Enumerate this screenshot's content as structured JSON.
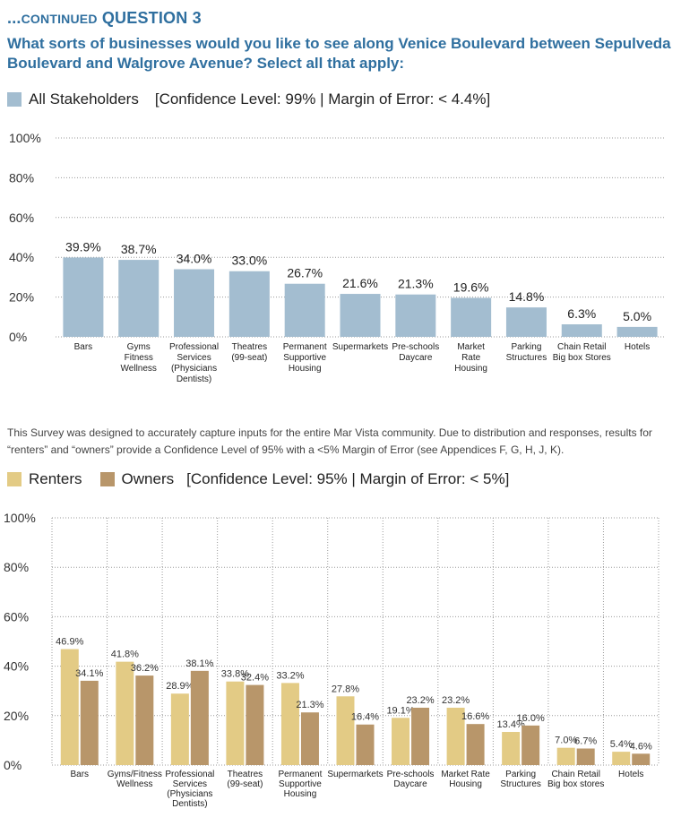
{
  "header": {
    "continued_prefix": "...",
    "continued_small": "CONTINUED",
    "continued_question": "QUESTION 3",
    "question": "What sorts of businesses would you like to see along Venice Boulevard between Sepulveda Boulevard and Walgrove Avenue? Select all that apply:"
  },
  "legend1": {
    "label": "All Stakeholders",
    "confidence": "[Confidence Level: 99%  |  Margin of Error: < 4.4%]"
  },
  "note": "This Survey was designed to accurately capture inputs for the entire Mar Vista community. Due to distribution and responses, results for “renters” and “owners” provide a Confidence Level of 95% with a <5% Margin of Error (see Appendices F, G, H, J, K).",
  "legend2": {
    "renters": "Renters",
    "owners": "Owners",
    "confidence": "[Confidence Level: 95%  |  Margin of Error: < 5%]"
  },
  "colors": {
    "stakeholders": "#a3bdd0",
    "renters": "#e3cb85",
    "owners": "#b8966a",
    "title": "#2f6f9f"
  },
  "chart_data": [
    {
      "type": "bar",
      "categories": [
        [
          "Bars"
        ],
        [
          "Gyms",
          "Fitness",
          "Wellness"
        ],
        [
          "Professional",
          "Services",
          "(Physicians",
          "Dentists)"
        ],
        [
          "Theatres",
          "(99-seat)"
        ],
        [
          "Permanent",
          "Supportive",
          "Housing"
        ],
        [
          "Supermarkets"
        ],
        [
          "Pre-schools",
          "Daycare"
        ],
        [
          "Market",
          "Rate",
          "Housing"
        ],
        [
          "Parking",
          "Structures"
        ],
        [
          "Chain Retail",
          "Big box Stores"
        ],
        [
          "Hotels"
        ]
      ],
      "series": [
        {
          "name": "All Stakeholders",
          "values": [
            39.9,
            38.7,
            34.0,
            33.0,
            26.7,
            21.6,
            21.3,
            19.6,
            14.8,
            6.3,
            5.0
          ]
        }
      ],
      "value_labels": [
        "39.9%",
        "38.7%",
        "34.0%",
        "33.0%",
        "26.7%",
        "21.6%",
        "21.3%",
        "19.6%",
        "14.8%",
        "6.3%",
        "5.0%"
      ],
      "yticks": [
        "0%",
        "20%",
        "40%",
        "60%",
        "80%",
        "100%"
      ],
      "ylim": [
        0,
        100
      ],
      "grid": "horizontal dotted"
    },
    {
      "type": "bar",
      "categories": [
        [
          "Bars"
        ],
        [
          "Gyms/Fitness",
          "Wellness"
        ],
        [
          "Professional",
          "Services",
          "(Physicians",
          "Dentists)"
        ],
        [
          "Theatres",
          "(99-seat)"
        ],
        [
          "Permanent",
          "Supportive",
          "Housing"
        ],
        [
          "Supermarkets"
        ],
        [
          "Pre-schools",
          "Daycare"
        ],
        [
          "Market Rate",
          "Housing"
        ],
        [
          "Parking",
          "Structures"
        ],
        [
          "Chain Retail",
          "Big box stores"
        ],
        [
          "Hotels"
        ]
      ],
      "series": [
        {
          "name": "Renters",
          "values": [
            46.9,
            41.8,
            28.9,
            33.8,
            33.2,
            27.8,
            19.1,
            23.2,
            13.4,
            7.0,
            5.4
          ],
          "value_labels": [
            "46.9%",
            "41.8%",
            "28.9%",
            "33.8%",
            "33.2%",
            "27.8%",
            "19.1%",
            "23.2%",
            "13.4%",
            "7.0%",
            "5.4%"
          ]
        },
        {
          "name": "Owners",
          "values": [
            34.1,
            36.2,
            38.1,
            32.4,
            21.3,
            16.4,
            23.2,
            16.6,
            16.0,
            6.7,
            4.6
          ],
          "value_labels": [
            "34.1%",
            "36.2%",
            "38.1%",
            "32.4%",
            "21.3%",
            "16.4%",
            "23.2%",
            "16.6%",
            "16.0%",
            "6.7%",
            "4.6%"
          ]
        }
      ],
      "yticks": [
        "0%",
        "20%",
        "40%",
        "60%",
        "80%",
        "100%"
      ],
      "ylim": [
        0,
        100
      ],
      "grid": "horizontal and vertical dotted"
    }
  ]
}
